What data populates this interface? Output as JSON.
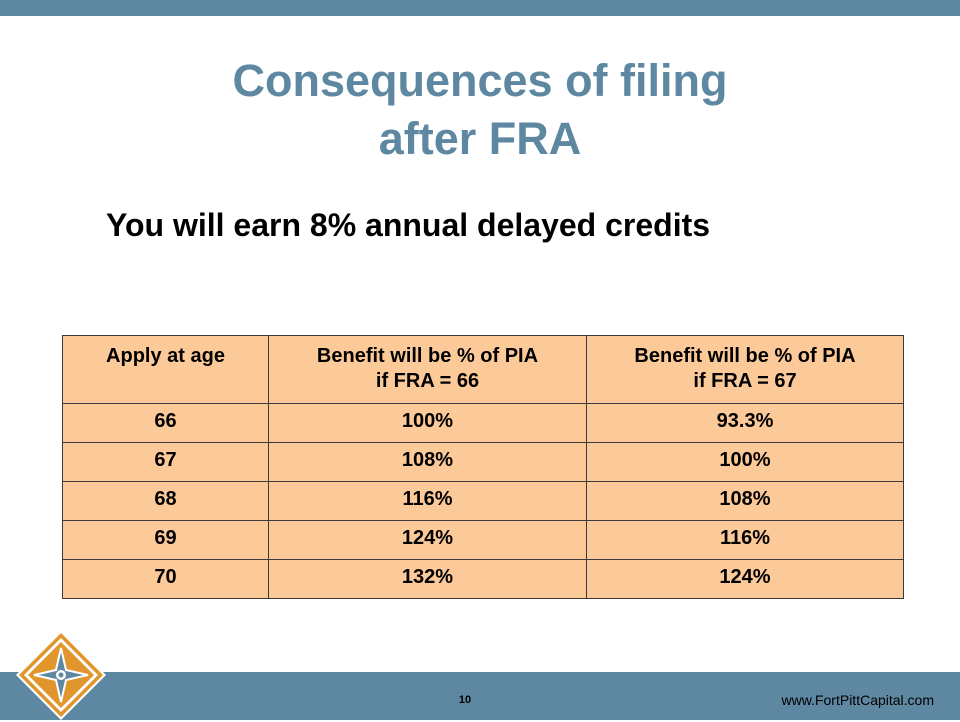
{
  "slide": {
    "title_line1": "Consequences of filing",
    "title_line2": "after FRA",
    "subtitle": "You will earn 8% annual delayed credits"
  },
  "table": {
    "headers": [
      {
        "line1": "Apply at age",
        "line2": ""
      },
      {
        "line1": "Benefit will be %  of PIA",
        "line2": "if FRA = 66"
      },
      {
        "line1": "Benefit will be %  of PIA",
        "line2": "if FRA = 67"
      }
    ],
    "rows": [
      [
        "66",
        "100%",
        "93.3%"
      ],
      [
        "67",
        "108%",
        "100%"
      ],
      [
        "68",
        "116%",
        "108%"
      ],
      [
        "69",
        "124%",
        "116%"
      ],
      [
        "70",
        "132%",
        "124%"
      ]
    ]
  },
  "footer": {
    "page_number": "10",
    "website": "www.FortPittCapital.com"
  },
  "colors": {
    "accent": "#5e87a1",
    "table_fill": "#fcc999",
    "logo_orange": "#e0962c"
  },
  "icons": {
    "logo": "diamond-compass-logo-icon"
  }
}
